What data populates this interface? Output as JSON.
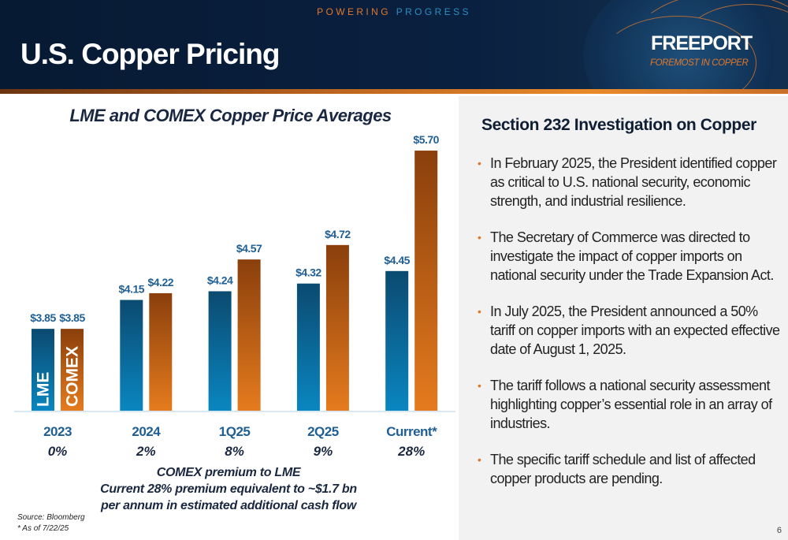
{
  "header": {
    "tagline_part1": "POWERING",
    "tagline_part2": "PROGRESS",
    "title": "U.S. Copper Pricing",
    "logo": "FREEPORT",
    "logo_sub": "FOREMOST IN COPPER"
  },
  "chart_data": {
    "type": "bar",
    "title": "LME and COMEX Copper Price Averages",
    "categories": [
      "2023",
      "2024",
      "1Q25",
      "2Q25",
      "Current*"
    ],
    "premiums": [
      "0%",
      "2%",
      "8%",
      "9%",
      "28%"
    ],
    "series": [
      {
        "name": "LME",
        "values": [
          3.85,
          4.15,
          4.24,
          4.32,
          4.45
        ],
        "labels": [
          "$3.85",
          "$4.15",
          "$4.24",
          "$4.32",
          "$4.45"
        ],
        "color": "#0a6a9a"
      },
      {
        "name": "COMEX",
        "values": [
          3.85,
          4.22,
          4.57,
          4.72,
          5.7
        ],
        "labels": [
          "$3.85",
          "$4.22",
          "$4.57",
          "$4.72",
          "$5.70"
        ],
        "color": "#d96f1c"
      }
    ],
    "ylim": [
      3.0,
      5.9
    ],
    "grid": false,
    "legend": "inside first bars"
  },
  "note": {
    "line1": "COMEX premium to LME",
    "line2": "Current 28% premium equivalent to ~$1.7 bn",
    "line3": "per annum in estimated additional cash flow"
  },
  "source": {
    "line1": "Source: Bloomberg",
    "line2": "* As of 7/22/25"
  },
  "panel": {
    "title": "Section 232 Investigation on Copper",
    "bullets": [
      "In February 2025, the President identified copper as critical to U.S. national security, economic strength, and industrial resilience.",
      "The Secretary of Commerce was directed to investigate the impact of copper imports on national security under the Trade Expansion Act.",
      "In July 2025, the President announced a 50% tariff on copper imports with an expected effective date of August 1, 2025.",
      "The tariff follows a national security assessment highlighting copper’s essential role in an array of industries.",
      "The specific tariff schedule and list of affected copper products are pending."
    ]
  },
  "page_number": "6"
}
